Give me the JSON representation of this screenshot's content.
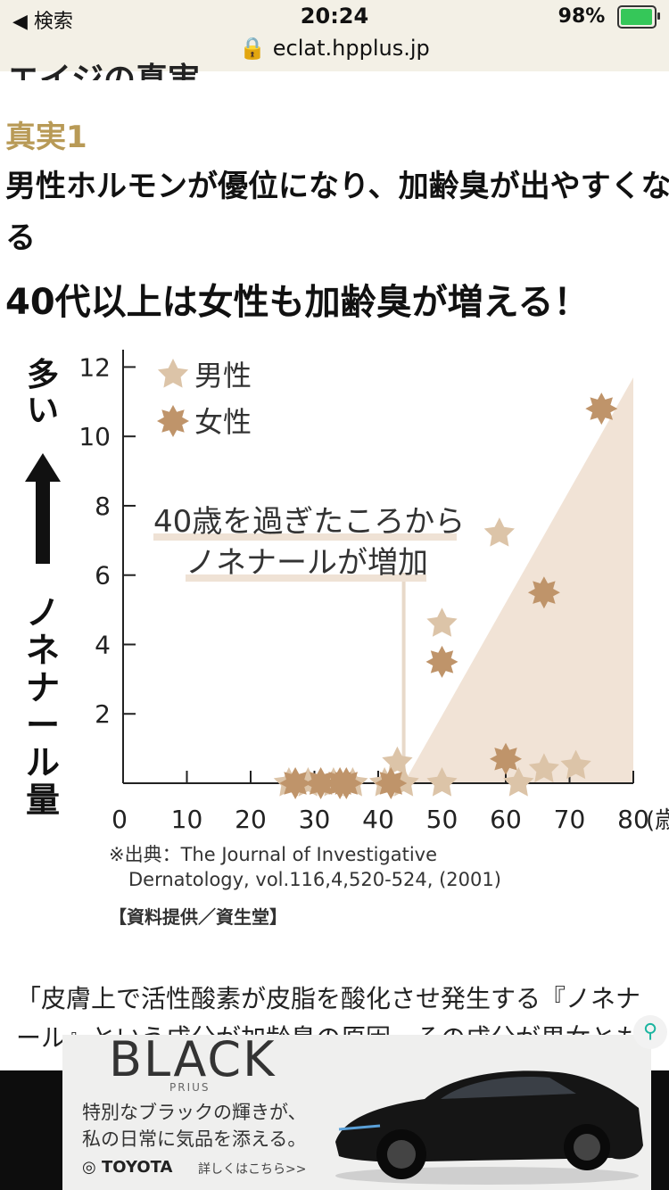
{
  "status_bar": {
    "back_label": "◀ 検索",
    "time": "20:24",
    "battery": "98%",
    "battery_level": 0.98,
    "url": "eclat.hpplus.jp"
  },
  "article": {
    "cut_heading": "エイジの真実",
    "truth_label": "真実1",
    "truth_text": "男性ホルモンが優位になり、加齢臭が出やすくなる",
    "headline": "40代以上は女性も加齢臭が増える！",
    "body_line1": "「皮膚上で活性酸素が皮脂を酸化させ発生する『ノネナ",
    "body_line2": "ール』という成分が加齢臭の原因。その成分が男女とも"
  },
  "chart_data": {
    "type": "scatter",
    "y_axis_title": "多い ⬆ ノネナール量",
    "x_ticks": [
      "0",
      "10",
      "20",
      "30",
      "40",
      "50",
      "60",
      "70",
      "80"
    ],
    "x_unit": "(歳",
    "y_ticks": [
      "2",
      "4",
      "6",
      "8",
      "10",
      "12"
    ],
    "xlim": [
      0,
      80
    ],
    "ylim": [
      0,
      12.5
    ],
    "legend": [
      "男性",
      "女性"
    ],
    "legend_position": "top-left",
    "annotation_line1": "40歳を過ぎたころから",
    "annotation_line2": "ノネナールが増加",
    "annotation_x": 44,
    "colors": {
      "male": "#dcc4a8",
      "female": "#bf946a",
      "trend": "#f1e3d6"
    },
    "series": [
      {
        "name": "男性",
        "points": [
          [
            26,
            0
          ],
          [
            29,
            0
          ],
          [
            33,
            0
          ],
          [
            36,
            0
          ],
          [
            41,
            0
          ],
          [
            43,
            0.6
          ],
          [
            44,
            0
          ],
          [
            50,
            4.6
          ],
          [
            50,
            0
          ],
          [
            59,
            7.2
          ],
          [
            62,
            0
          ],
          [
            66,
            0.4
          ],
          [
            71,
            0.5
          ]
        ]
      },
      {
        "name": "女性",
        "points": [
          [
            27,
            0
          ],
          [
            31,
            0
          ],
          [
            34,
            0
          ],
          [
            35,
            0
          ],
          [
            42,
            0
          ],
          [
            50,
            3.5
          ],
          [
            60,
            0.7
          ],
          [
            66,
            5.5
          ],
          [
            75,
            10.8
          ]
        ]
      }
    ],
    "source_line1": "※出典：The Journal of Investigative",
    "source_line2": "Dernatology, vol.116,4,520-524, (2001)",
    "credit": "【資料提供／資生堂】"
  },
  "ad": {
    "title": "BLACK",
    "subtitle": "PRIUS",
    "copy_line1": "特別なブラックの輝きが、",
    "copy_line2": "私の日常に気品を添える。",
    "brand": "TOYOTA",
    "more": "詳しくはこちら>>"
  }
}
